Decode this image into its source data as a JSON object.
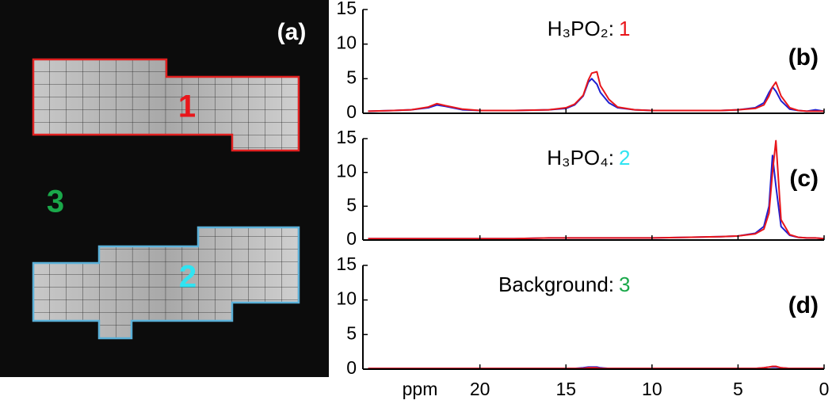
{
  "image": {
    "label": "(a)",
    "regions": [
      {
        "label": "1",
        "color": "#e8161b"
      },
      {
        "label": "2",
        "color": "#30e4f2"
      },
      {
        "label": "3",
        "color": "#1aa84a"
      }
    ]
  },
  "chart_data": [
    {
      "type": "line",
      "panel_label": "(b)",
      "title": "H₃PO₂:",
      "title_region": "1",
      "title_region_color": "#e8161b",
      "x": [
        26.5,
        25,
        24,
        23,
        22.5,
        22,
        21,
        20,
        18,
        16,
        15,
        14.5,
        14,
        13.7,
        13.5,
        13.2,
        13,
        12.5,
        12,
        11,
        10,
        8,
        6,
        5,
        4,
        3.5,
        3.2,
        3,
        2.8,
        2.5,
        2,
        1.5,
        1,
        0.5,
        0
      ],
      "xlim": [
        26.8,
        0
      ],
      "ylim": [
        0,
        15
      ],
      "yticks": [
        0,
        5,
        10,
        15
      ],
      "series": [
        {
          "color": "#1f1fd0",
          "values": [
            0.3,
            0.4,
            0.5,
            0.8,
            1.2,
            1.0,
            0.5,
            0.4,
            0.4,
            0.5,
            0.7,
            1.2,
            2.5,
            4.5,
            5.0,
            4.2,
            3.0,
            1.5,
            0.8,
            0.5,
            0.4,
            0.4,
            0.4,
            0.5,
            0.8,
            1.5,
            3.0,
            3.8,
            3.2,
            1.8,
            0.6,
            0.4,
            0.3,
            0.5,
            0.3
          ]
        },
        {
          "color": "#e8161b",
          "values": [
            0.3,
            0.4,
            0.5,
            0.9,
            1.4,
            1.1,
            0.6,
            0.4,
            0.4,
            0.5,
            0.8,
            1.3,
            2.6,
            4.8,
            5.8,
            6.0,
            4.0,
            2.0,
            0.9,
            0.5,
            0.4,
            0.4,
            0.4,
            0.5,
            0.7,
            1.2,
            2.5,
            3.8,
            4.5,
            2.5,
            0.8,
            0.4,
            0.3,
            0.3,
            0.3
          ]
        }
      ]
    },
    {
      "type": "line",
      "panel_label": "(c)",
      "title": "H₃PO₄:",
      "title_region": "2",
      "title_region_color": "#30e4f2",
      "x": [
        26.5,
        25,
        24,
        23,
        22.5,
        22,
        21,
        20,
        18,
        16,
        15,
        14.5,
        14,
        13.7,
        13.5,
        13.2,
        13,
        12.5,
        12,
        11,
        10,
        8,
        6,
        5,
        4,
        3.5,
        3.2,
        3,
        2.8,
        2.5,
        2,
        1.5,
        1,
        0.5,
        0
      ],
      "xlim": [
        26.8,
        0
      ],
      "ylim": [
        0,
        15
      ],
      "yticks": [
        0,
        5,
        10,
        15
      ],
      "series": [
        {
          "color": "#1f1fd0",
          "values": [
            0.2,
            0.2,
            0.2,
            0.2,
            0.2,
            0.2,
            0.2,
            0.2,
            0.2,
            0.3,
            0.3,
            0.3,
            0.3,
            0.3,
            0.3,
            0.3,
            0.3,
            0.3,
            0.3,
            0.3,
            0.3,
            0.4,
            0.5,
            0.6,
            1.0,
            2.0,
            5.0,
            12.5,
            8.0,
            2.0,
            0.7,
            0.4,
            0.3,
            0.3,
            0.2
          ]
        },
        {
          "color": "#e8161b",
          "values": [
            0.2,
            0.2,
            0.2,
            0.2,
            0.2,
            0.2,
            0.2,
            0.2,
            0.2,
            0.3,
            0.3,
            0.3,
            0.3,
            0.3,
            0.3,
            0.3,
            0.3,
            0.3,
            0.3,
            0.3,
            0.3,
            0.4,
            0.5,
            0.6,
            0.9,
            1.6,
            4.0,
            10.0,
            14.7,
            3.0,
            0.8,
            0.4,
            0.3,
            0.3,
            0.2
          ]
        }
      ]
    },
    {
      "type": "line",
      "panel_label": "(d)",
      "title": "Background:",
      "title_region": "3",
      "title_region_color": "#1aa84a",
      "x": [
        26.5,
        25,
        24,
        23,
        22.5,
        22,
        21,
        20,
        18,
        16,
        15,
        14.5,
        14,
        13.7,
        13.5,
        13.2,
        13,
        12.5,
        12,
        11,
        10,
        8,
        6,
        5,
        4,
        3.5,
        3.2,
        3,
        2.8,
        2.5,
        2,
        1.5,
        1,
        0.5,
        0
      ],
      "xlim": [
        26.8,
        0
      ],
      "ylim": [
        0,
        15
      ],
      "yticks": [
        0,
        5,
        10,
        15
      ],
      "x_label": "ppm",
      "xticks": [
        20,
        15,
        10,
        5,
        0
      ],
      "series": [
        {
          "color": "#1f1fd0",
          "values": [
            0.1,
            0.1,
            0.1,
            0.1,
            0.1,
            0.1,
            0.1,
            0.1,
            0.1,
            0.1,
            0.1,
            0.1,
            0.2,
            0.3,
            0.3,
            0.3,
            0.2,
            0.1,
            0.1,
            0.1,
            0.1,
            0.1,
            0.1,
            0.1,
            0.1,
            0.2,
            0.3,
            0.3,
            0.3,
            0.2,
            0.1,
            0.1,
            0.1,
            0.1,
            0.1
          ]
        },
        {
          "color": "#e8161b",
          "values": [
            0.1,
            0.1,
            0.1,
            0.1,
            0.1,
            0.1,
            0.1,
            0.1,
            0.1,
            0.1,
            0.1,
            0.1,
            0.1,
            0.2,
            0.2,
            0.2,
            0.1,
            0.1,
            0.1,
            0.1,
            0.1,
            0.1,
            0.1,
            0.1,
            0.1,
            0.2,
            0.3,
            0.4,
            0.4,
            0.2,
            0.1,
            0.1,
            0.1,
            0.1,
            0.1
          ]
        }
      ]
    }
  ]
}
